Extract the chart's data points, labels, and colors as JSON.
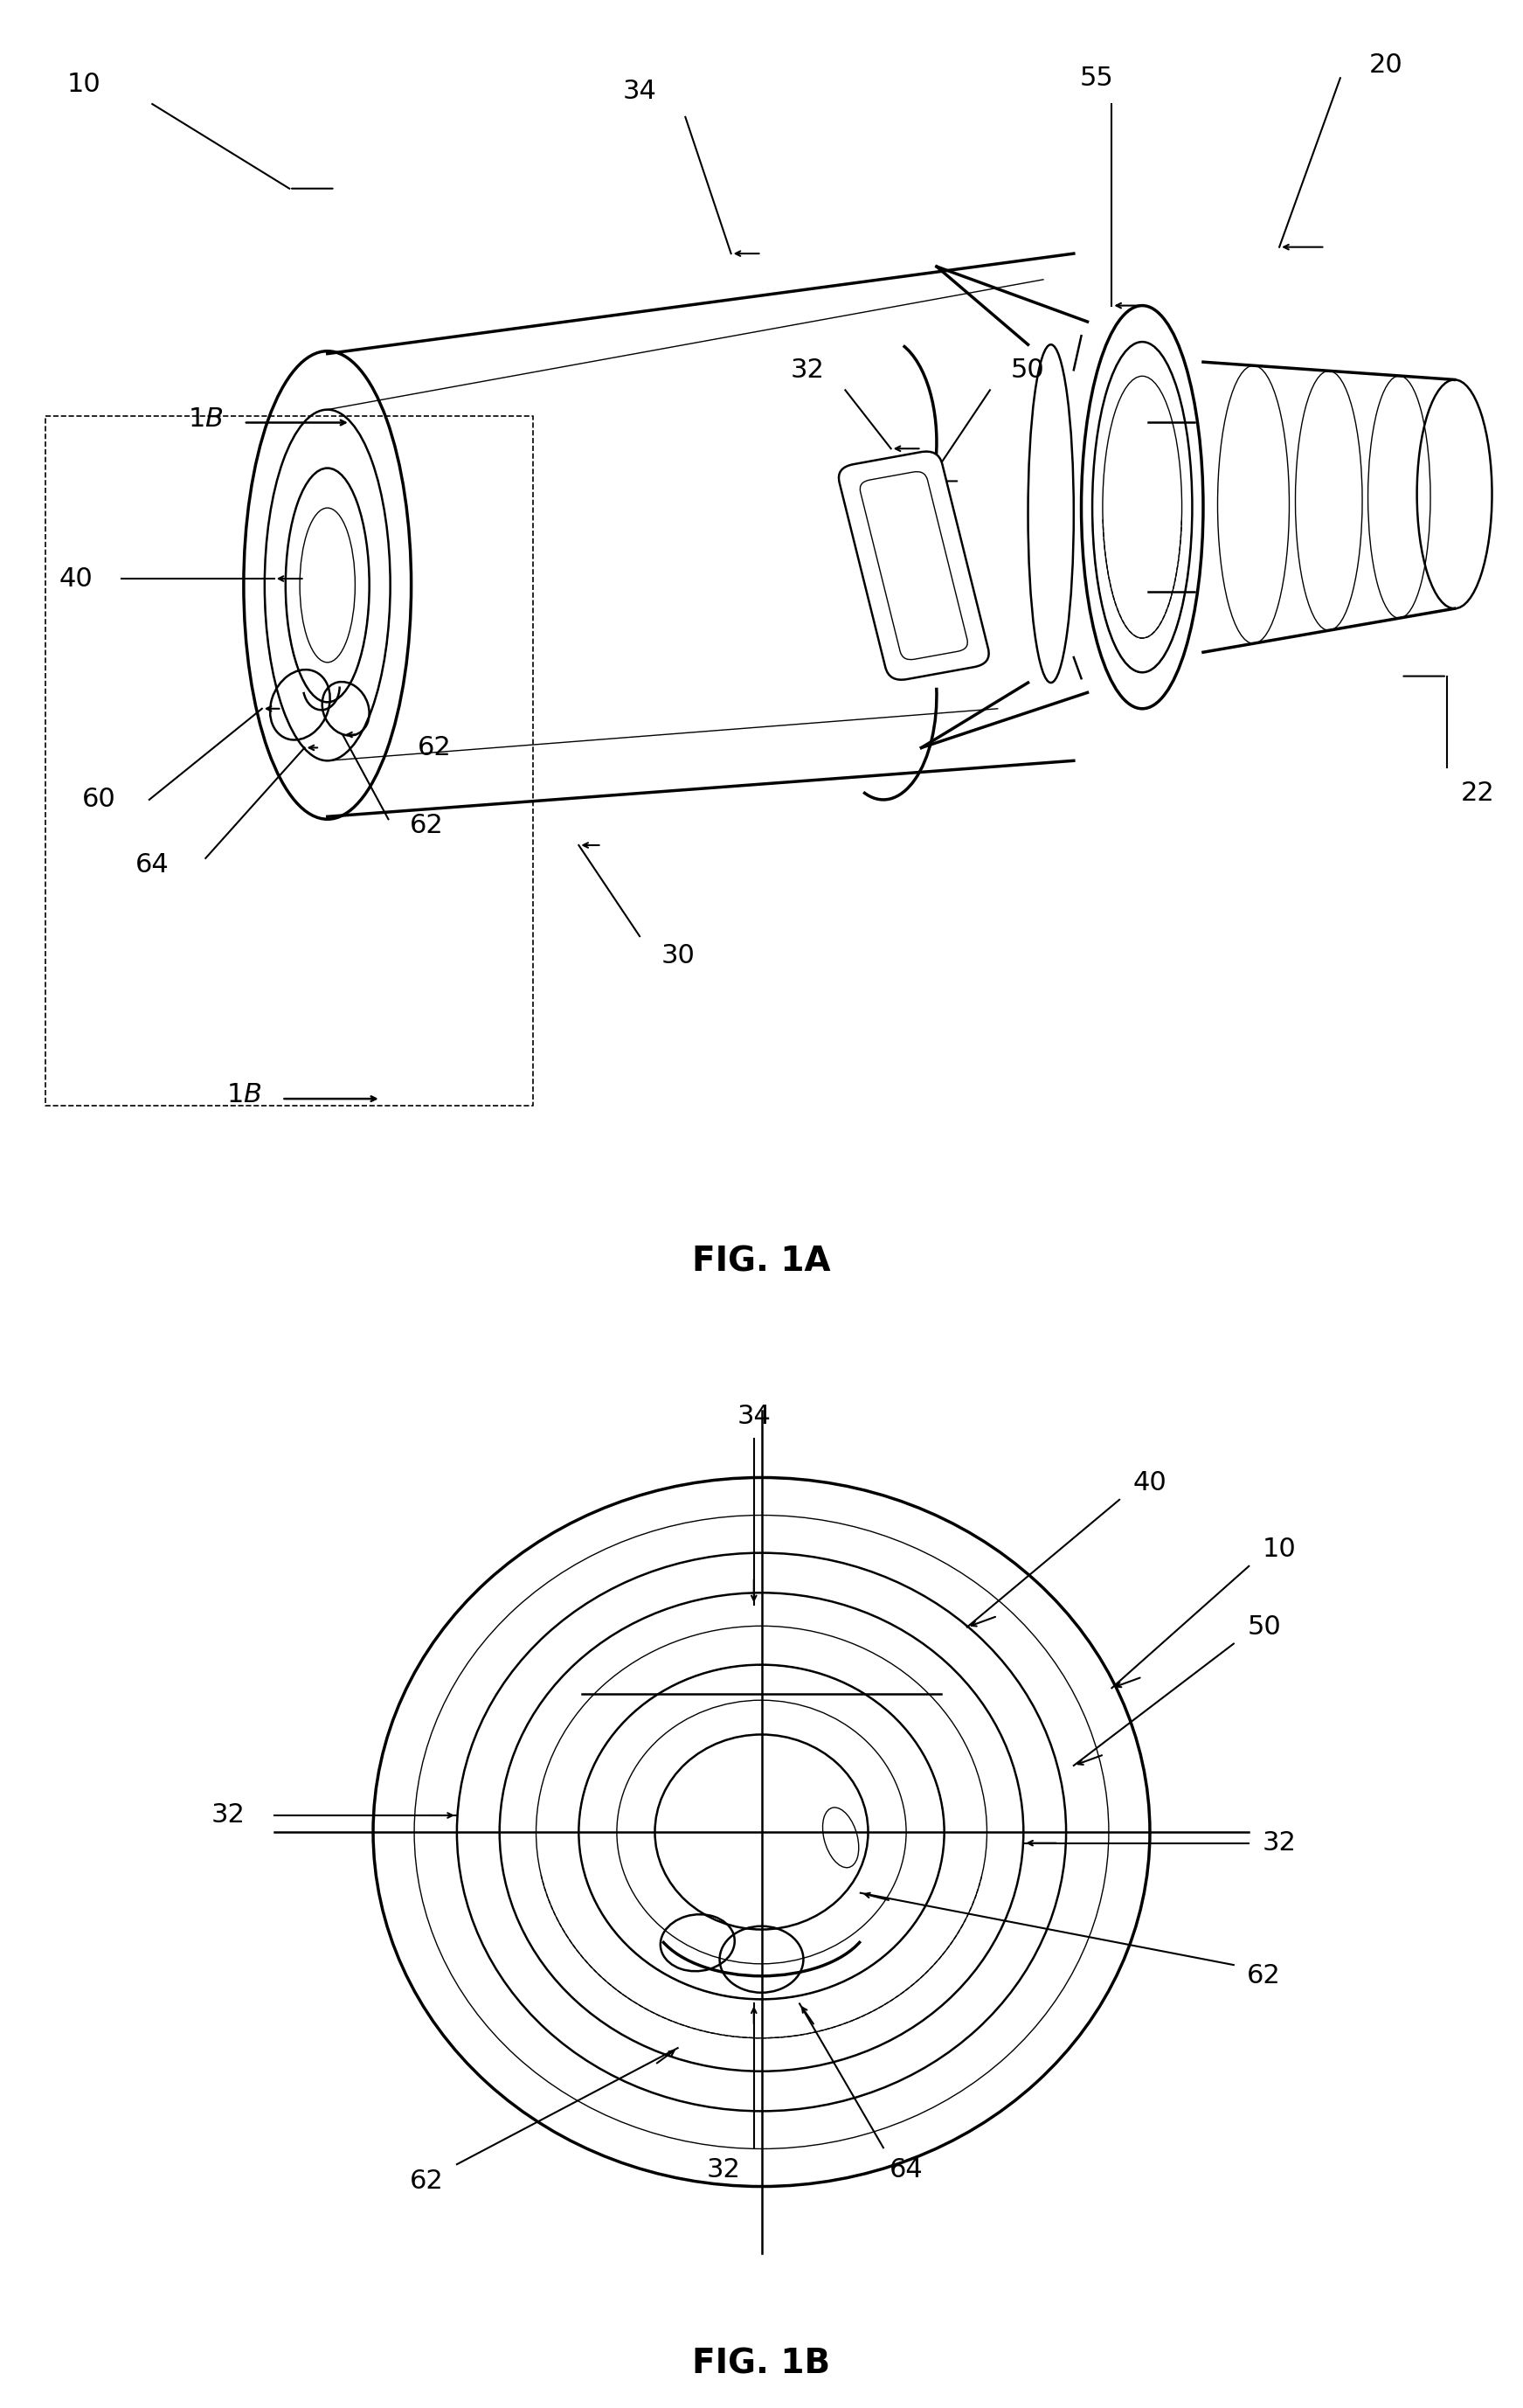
{
  "fig_width": 17.43,
  "fig_height": 27.55,
  "bg_color": "#ffffff",
  "line_color": "#000000",
  "fig1a_title": "FIG. 1A",
  "fig1b_title": "FIG. 1B",
  "lw_thick": 2.5,
  "lw_main": 1.8,
  "lw_thin": 1.0,
  "lw_dashed": 1.2,
  "fontsize_label": 22,
  "fontsize_title": 28
}
